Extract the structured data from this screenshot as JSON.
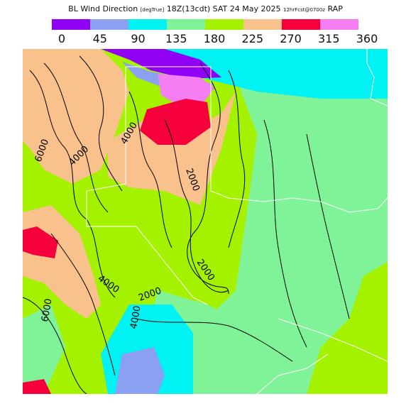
{
  "title": {
    "field": "BL Wind Direction",
    "units": "[degTrue]",
    "time": "18Z(13cdt) SAT 24 May 2025",
    "fcst": "12hrFcst@0700z",
    "model": "RAP"
  },
  "legend": {
    "colors": [
      "#8f00f5",
      "#8ca0f2",
      "#00f2f2",
      "#80f298",
      "#a4f200",
      "#f9c18c",
      "#f5003c",
      "#f57ff2"
    ],
    "ticks": [
      "0",
      "45",
      "90",
      "135",
      "180",
      "225",
      "270",
      "315",
      "360"
    ]
  },
  "contour_labels": [
    "6000",
    "4000",
    "4000",
    "2000",
    "2000",
    "4000",
    "2000",
    "4000",
    "6000"
  ],
  "colors": {
    "north": "#8f00f5",
    "northeast": "#8ca0f2",
    "east": "#00f2f2",
    "southeast": "#80f298",
    "south": "#a4f200",
    "southwest": "#f9c18c",
    "west": "#f5003c",
    "northwest": "#f57ff2"
  }
}
